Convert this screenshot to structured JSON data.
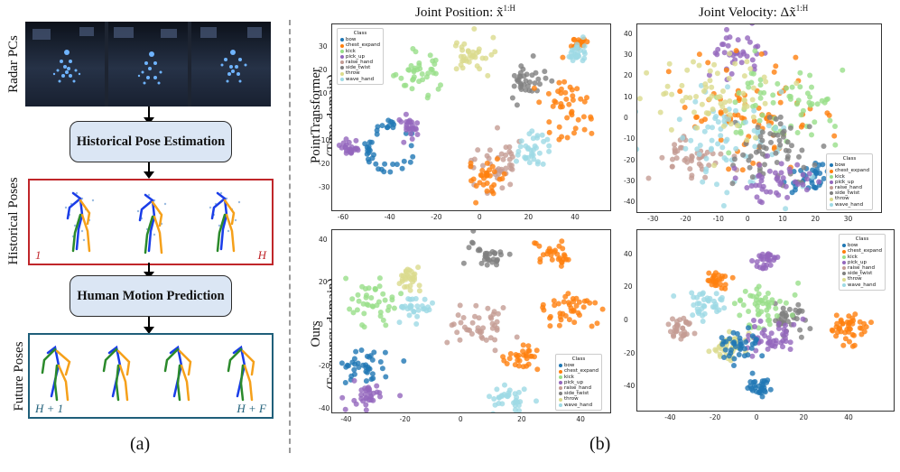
{
  "panel_a": {
    "radar_label": "Radar PCs",
    "historical_label": "Historical Poses",
    "future_label": "Future Poses",
    "box1": "Historical Pose Estimation",
    "box2": "Human Motion Prediction",
    "hist_start": "1",
    "hist_end": "H",
    "fut_start": "H + 1",
    "fut_end": "H + F",
    "caption": "(a)",
    "colors": {
      "blue": "#1a3de8",
      "orange": "#f5a01a",
      "green": "#2b8a2b",
      "red": "#c0262a",
      "teal": "#1f5f7a",
      "boxfill": "#dbe6f4"
    }
  },
  "panel_b": {
    "caption": "(b)",
    "col1_title": "Joint Position: x̃",
    "col1_sup": "1:H",
    "col2_title": "Joint Velocity: Δx̃",
    "col2_sup": "1:H",
    "row1_title": "PointTransformer",
    "row1_sub": "(Time-domain)",
    "row2_title": "Ours",
    "row2_sub": "(Frequency-domain)",
    "legend_title": "Class",
    "classes": [
      "bow",
      "chest_expand",
      "kick",
      "pick_up",
      "raise_hand",
      "side_twist",
      "throw",
      "wave_hand"
    ],
    "class_colors": [
      "#1f77b4",
      "#ff7f0e",
      "#98df8a",
      "#9467bd",
      "#c49c94",
      "#7f7f7f",
      "#dbdb8d",
      "#9edae5"
    ]
  },
  "chart_data": [
    {
      "type": "scatter",
      "title": "PointTransformer (Time-domain) — Joint Position",
      "xlim": [
        -65,
        55
      ],
      "ylim": [
        -40,
        40
      ],
      "xticks": [
        -60,
        -40,
        -20,
        0,
        20,
        40
      ],
      "yticks": [
        -30,
        -20,
        -10,
        0,
        10,
        20,
        30
      ],
      "clusters": [
        {
          "class": "bow",
          "cx": -40,
          "cy": -12,
          "r": 9,
          "ring": true
        },
        {
          "class": "pick_up",
          "cx": -57,
          "cy": -13,
          "r": 4
        },
        {
          "class": "kick",
          "cx": -28,
          "cy": 18,
          "r": 8
        },
        {
          "class": "throw",
          "cx": -5,
          "cy": 27,
          "r": 7
        },
        {
          "class": "side_twist",
          "cx": 19,
          "cy": 15,
          "r": 7
        },
        {
          "class": "chest_expand",
          "cx": 35,
          "cy": 5,
          "r": 10
        },
        {
          "class": "chest_expand",
          "cx": 41,
          "cy": 32,
          "r": 3
        },
        {
          "class": "raise_hand",
          "cx": 5,
          "cy": -20,
          "r": 9
        },
        {
          "class": "chest_expand",
          "cx": 0,
          "cy": -25,
          "r": 6
        },
        {
          "class": "wave_hand",
          "cx": 21,
          "cy": -14,
          "r": 7
        },
        {
          "class": "wave_hand",
          "cx": 40,
          "cy": 28,
          "r": 4
        },
        {
          "class": "pick_up",
          "cx": -32,
          "cy": -4,
          "r": 4
        }
      ]
    },
    {
      "type": "scatter",
      "title": "PointTransformer (Time-domain) — Joint Velocity",
      "xlim": [
        -35,
        40
      ],
      "ylim": [
        -45,
        45
      ],
      "xticks": [
        -30,
        -20,
        -10,
        0,
        10,
        20,
        30
      ],
      "yticks": [
        -40,
        -30,
        -20,
        -10,
        0,
        10,
        20,
        30,
        40
      ],
      "clusters": [
        {
          "class": "pick_up",
          "cx": -5,
          "cy": 32,
          "r": 8
        },
        {
          "class": "bow",
          "cx": 18,
          "cy": -28,
          "r": 7
        },
        {
          "class": "raise_hand",
          "cx": -20,
          "cy": -18,
          "r": 10
        },
        {
          "class": "chest_expand",
          "cx": 0,
          "cy": 0,
          "r": 22
        },
        {
          "class": "kick",
          "cx": 10,
          "cy": 5,
          "r": 18
        },
        {
          "class": "wave_hand",
          "cx": -5,
          "cy": -10,
          "r": 20
        },
        {
          "class": "side_twist",
          "cx": 5,
          "cy": -15,
          "r": 15
        },
        {
          "class": "throw",
          "cx": -10,
          "cy": 10,
          "r": 18
        },
        {
          "class": "pick_up",
          "cx": 8,
          "cy": -30,
          "r": 10
        }
      ]
    },
    {
      "type": "scatter",
      "title": "Ours (Frequency-domain) — Joint Position",
      "xlim": [
        -45,
        50
      ],
      "ylim": [
        -42,
        45
      ],
      "xticks": [
        -40,
        -20,
        0,
        20,
        40
      ],
      "yticks": [
        -40,
        -20,
        0,
        20,
        40
      ],
      "clusters": [
        {
          "class": "side_twist",
          "cx": 8,
          "cy": 33,
          "r": 6
        },
        {
          "class": "chest_expand",
          "cx": 30,
          "cy": 33,
          "r": 5
        },
        {
          "class": "chest_expand",
          "cx": 35,
          "cy": 8,
          "r": 9
        },
        {
          "class": "throw",
          "cx": -20,
          "cy": 22,
          "r": 5
        },
        {
          "class": "kick",
          "cx": -30,
          "cy": 10,
          "r": 9
        },
        {
          "class": "raise_hand",
          "cx": 5,
          "cy": 0,
          "r": 10
        },
        {
          "class": "bow",
          "cx": -35,
          "cy": -20,
          "r": 8
        },
        {
          "class": "pick_up",
          "cx": -33,
          "cy": -33,
          "r": 6
        },
        {
          "class": "wave_hand",
          "cx": 16,
          "cy": -34,
          "r": 6
        },
        {
          "class": "chest_expand",
          "cx": 20,
          "cy": -15,
          "r": 5
        },
        {
          "class": "wave_hand",
          "cx": -17,
          "cy": 8,
          "r": 5
        }
      ]
    },
    {
      "type": "scatter",
      "title": "Ours (Frequency-domain) — Joint Velocity",
      "xlim": [
        -55,
        60
      ],
      "ylim": [
        -55,
        55
      ],
      "xticks": [
        -40,
        -20,
        0,
        20,
        40
      ],
      "yticks": [
        -40,
        -20,
        0,
        20,
        40
      ],
      "clusters": [
        {
          "class": "pick_up",
          "cx": 2,
          "cy": 38,
          "r": 5
        },
        {
          "class": "chest_expand",
          "cx": -20,
          "cy": 25,
          "r": 4
        },
        {
          "class": "wave_hand",
          "cx": -25,
          "cy": 10,
          "r": 8
        },
        {
          "class": "raise_hand",
          "cx": -35,
          "cy": -5,
          "r": 6
        },
        {
          "class": "chest_expand",
          "cx": 40,
          "cy": -5,
          "r": 10
        },
        {
          "class": "side_twist",
          "cx": 10,
          "cy": 0,
          "r": 8
        },
        {
          "class": "kick",
          "cx": 0,
          "cy": 10,
          "r": 12
        },
        {
          "class": "bow",
          "cx": 0,
          "cy": -40,
          "r": 5
        },
        {
          "class": "throw",
          "cx": -15,
          "cy": -15,
          "r": 8
        },
        {
          "class": "pick_up",
          "cx": 5,
          "cy": -10,
          "r": 10
        },
        {
          "class": "bow",
          "cx": -10,
          "cy": -15,
          "r": 8
        }
      ]
    }
  ]
}
